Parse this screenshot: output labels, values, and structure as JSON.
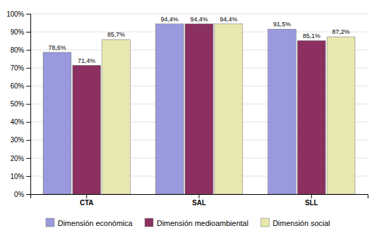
{
  "chart_data": {
    "type": "bar",
    "categories": [
      "CTA",
      "SAL",
      "SLL"
    ],
    "series": [
      {
        "name": "Dimensión económica",
        "color": "#9999DD",
        "values": [
          78.6,
          94.4,
          91.5
        ],
        "value_labels": [
          "78,6%",
          "94,4%",
          "91,5%"
        ]
      },
      {
        "name": "Dimensión medioambiental",
        "color": "#8B3060",
        "values": [
          71.4,
          94.4,
          85.1
        ],
        "value_labels": [
          "71,4%",
          "94,4%",
          "85,1%"
        ]
      },
      {
        "name": "Dimensión social",
        "color": "#E8E8B0",
        "values": [
          85.7,
          94.4,
          87.2
        ],
        "value_labels": [
          "85,7%",
          "94,4%",
          "87,2%"
        ]
      }
    ],
    "ylim": [
      0,
      100
    ],
    "yticks": [
      {
        "value": 0,
        "label": "0%"
      },
      {
        "value": 10,
        "label": "10%"
      },
      {
        "value": 20,
        "label": "20%"
      },
      {
        "value": 30,
        "label": "30%"
      },
      {
        "value": 40,
        "label": "40%"
      },
      {
        "value": 50,
        "label": "50%"
      },
      {
        "value": 60,
        "label": "60%"
      },
      {
        "value": 70,
        "label": "70%"
      },
      {
        "value": 80,
        "label": "80%"
      },
      {
        "value": 90,
        "label": "90%"
      },
      {
        "value": 100,
        "label": "100%"
      }
    ],
    "grid": true,
    "legend": "bottom",
    "data_labels": true
  }
}
